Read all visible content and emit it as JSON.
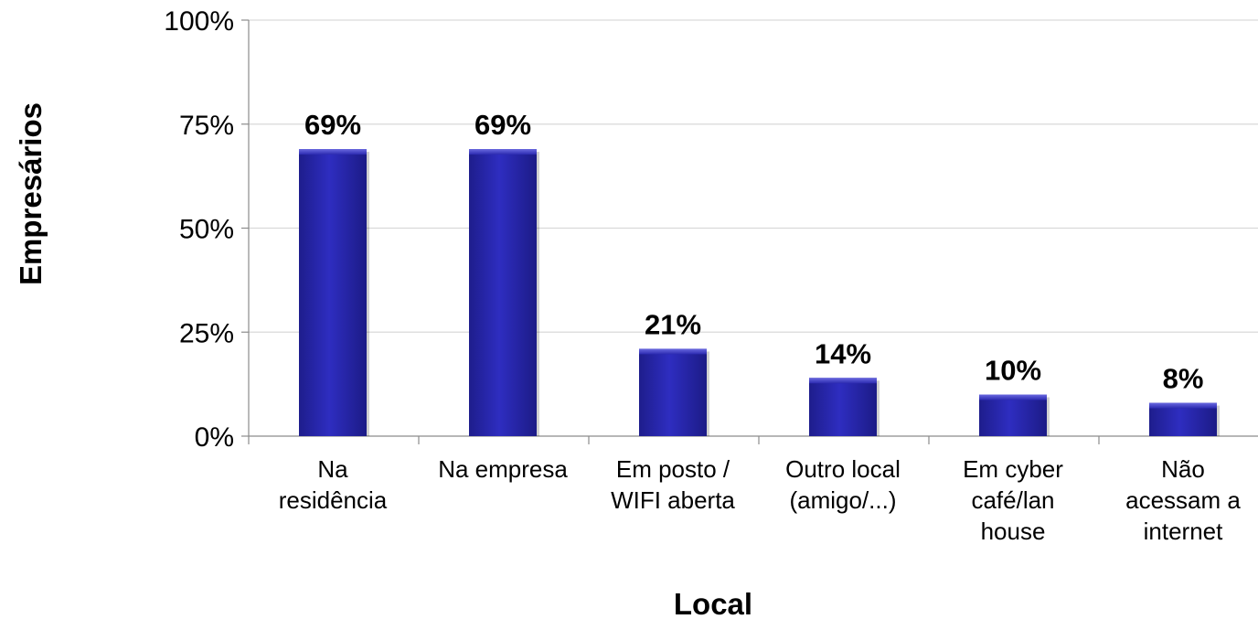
{
  "chart_data": {
    "type": "bar",
    "xlabel": "Local",
    "ylabel": "Empresários",
    "categories": [
      [
        "Na",
        "residência"
      ],
      [
        "Na empresa"
      ],
      [
        "Em posto /",
        "WIFI aberta"
      ],
      [
        "Outro local",
        "(amigo/...)"
      ],
      [
        "Em cyber",
        "café/lan",
        "house"
      ],
      [
        "Não",
        "acessam a",
        "internet"
      ]
    ],
    "values": [
      69,
      69,
      21,
      14,
      10,
      8
    ],
    "data_labels": [
      "69%",
      "69%",
      "21%",
      "14%",
      "10%",
      "8%"
    ],
    "ylim": [
      0,
      100
    ],
    "yticks": [
      0,
      25,
      50,
      75,
      100
    ],
    "ytick_labels": [
      "0%",
      "25%",
      "50%",
      "75%",
      "100%"
    ],
    "grid": true,
    "bar_color": "#2b2ab0",
    "legend": null
  }
}
